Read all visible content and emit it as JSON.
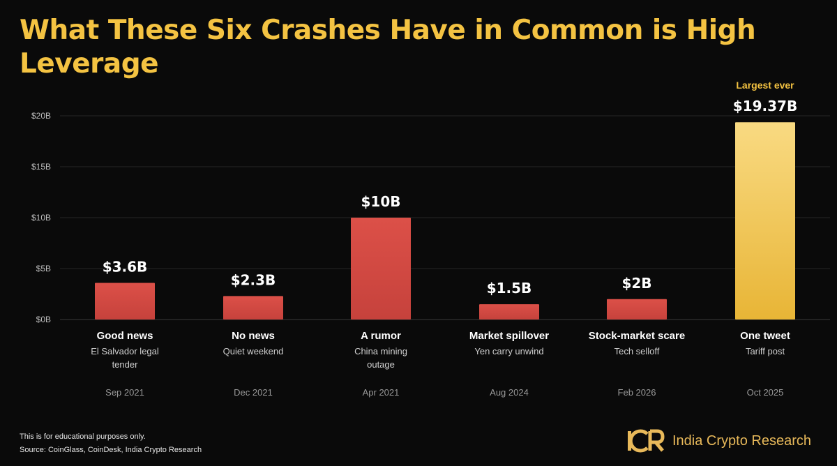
{
  "title": "What These Six Crashes Have in Common is High Leverage",
  "footer": {
    "disclaimer": "This is for educational purposes only.",
    "source": "Source: CoinGlass, CoinDesk, India Crypto Research"
  },
  "brand": {
    "logo_text": "India Crypto Research",
    "logo_mark": "ICR",
    "logo_color": "#e8b95a"
  },
  "colors": {
    "title": "#f4c342",
    "bar_red": "#d14c44",
    "bar_highlight": "#f2c550",
    "highlight_note": "#f4c342"
  },
  "chart_data": {
    "type": "bar",
    "title": "What These Six Crashes Have in Common is High Leverage",
    "unit": "$B",
    "ylim": [
      0,
      20
    ],
    "yticks": [
      0,
      5,
      10,
      15,
      20
    ],
    "ytick_labels": [
      "$0B",
      "$5B",
      "$10B",
      "$15B",
      "$20B"
    ],
    "grid": true,
    "categories": [
      "Good news",
      "No news",
      "A rumor",
      "Market spillover",
      "Stock-market scare",
      "One tweet"
    ],
    "subtitles": [
      "El Salvador legal tender",
      "Quiet weekend",
      "China mining outage",
      "Yen carry unwind",
      "Tech selloff",
      "Tariff post"
    ],
    "dates": [
      "Sep 2021",
      "Dec 2021",
      "Apr 2021",
      "Aug 2024",
      "Feb 2026",
      "Oct 2025"
    ],
    "values": [
      3.6,
      2.3,
      10,
      1.5,
      2,
      19.37
    ],
    "value_labels": [
      "$3.6B",
      "$2.3B",
      "$10B",
      "$1.5B",
      "$2B",
      "$19.37B"
    ],
    "highlight_index": 5,
    "highlight_note": "Largest ever"
  }
}
